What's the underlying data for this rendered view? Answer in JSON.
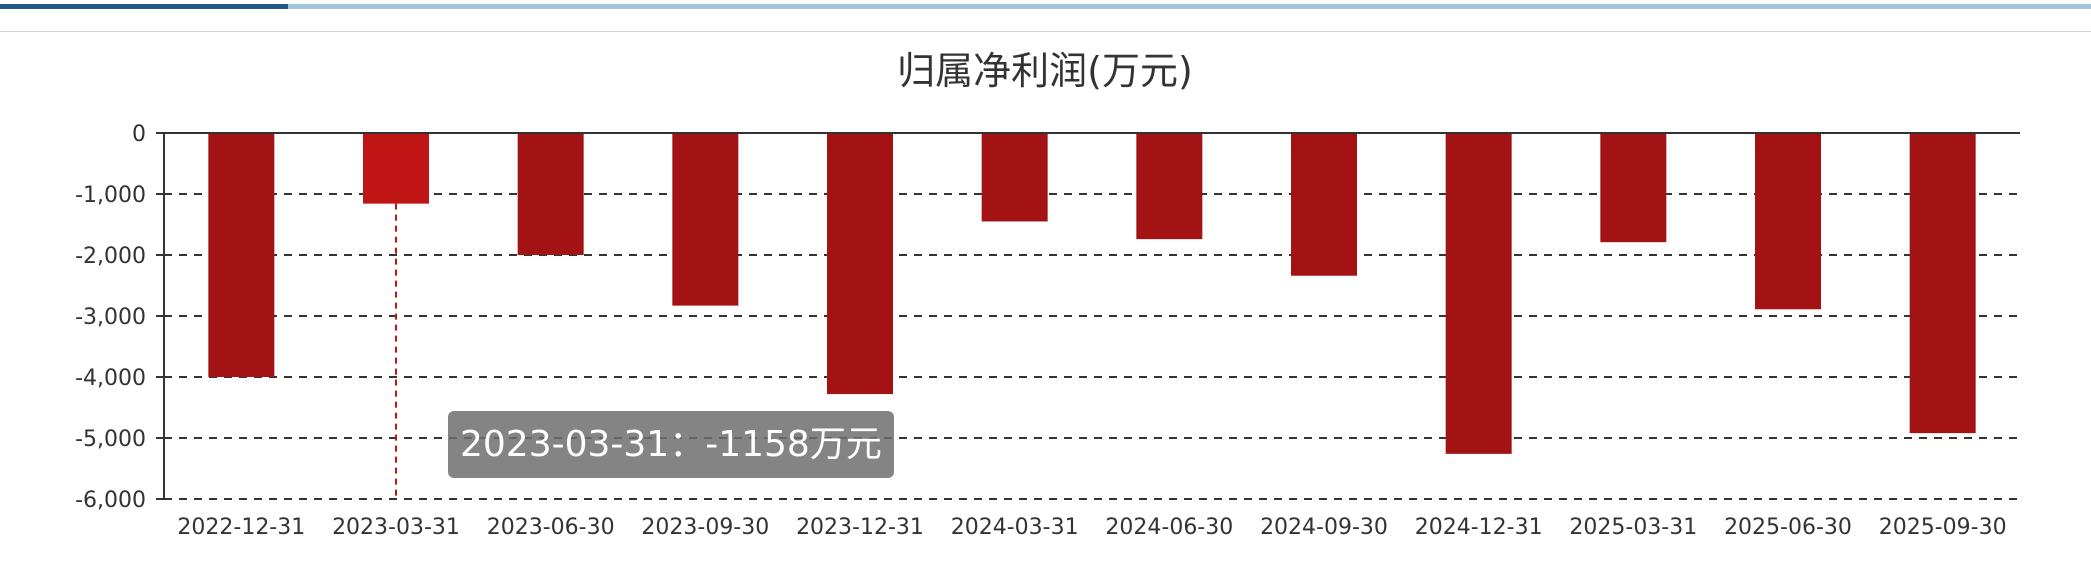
{
  "chart_data": {
    "type": "bar",
    "title": "归属净利润(万元)",
    "xlabel": "",
    "ylabel": "",
    "categories": [
      "2022-12-31",
      "2023-03-31",
      "2023-06-30",
      "2023-09-30",
      "2023-12-31",
      "2024-03-31",
      "2024-06-30",
      "2024-09-30",
      "2024-12-31",
      "2025-03-31",
      "2025-06-30",
      "2025-09-30"
    ],
    "values": [
      -4000,
      -1158,
      -2000,
      -2830,
      -4280,
      -1450,
      -1740,
      -2340,
      -5260,
      -1790,
      -2890,
      -4920
    ],
    "ylim": [
      -6000,
      0
    ],
    "yticks": [
      0,
      -1000,
      -2000,
      -3000,
      -4000,
      -5000,
      -6000
    ],
    "ytick_labels": [
      "0",
      "-1,000",
      "-2,000",
      "-3,000",
      "-4,000",
      "-5,000",
      "-6,000"
    ],
    "grid": true,
    "bar_color": "#a31313",
    "highlight_color": "#c01515",
    "highlight_index": 1
  },
  "tooltip": {
    "text": "2023-03-31：-1158万元"
  },
  "colors": {
    "accent_dark": "#1f5a86",
    "accent_light": "#9fc6dc"
  }
}
